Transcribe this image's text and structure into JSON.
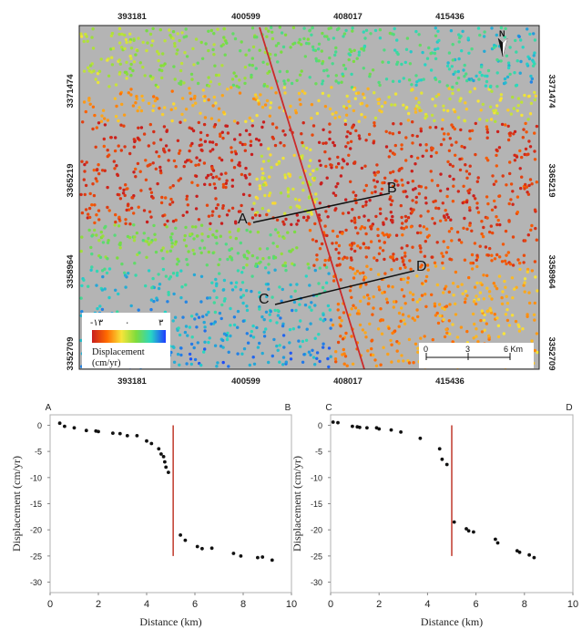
{
  "map": {
    "x_ticks": [
      "393181",
      "400599",
      "408017",
      "415436"
    ],
    "y_ticks": [
      "3371474",
      "3365219",
      "3358964",
      "3352709"
    ],
    "north_label": "N",
    "profile_labels": [
      "A",
      "B",
      "C",
      "D"
    ],
    "legend": {
      "range_labels": [
        "-۱۳",
        "۰",
        "۳"
      ],
      "title_line1": "Displacement",
      "title_line2": "(cm/yr)",
      "colors": [
        "#c81e1e",
        "#ff6a00",
        "#f7e53a",
        "#7ddc3c",
        "#28d6c4",
        "#1e3cff"
      ]
    },
    "scale_bar": {
      "labels": [
        "0",
        "3",
        "6 Km"
      ]
    },
    "colors": {
      "background": "#b4b4b4",
      "fault": "#cc2a2a",
      "profile_line": "#111111"
    }
  },
  "chart_data": [
    {
      "type": "scatter",
      "title": "",
      "corner_left": "A",
      "corner_right": "B",
      "xlabel": "Distance (km)",
      "ylabel": "Displacement (cm/yr)",
      "xlim": [
        0,
        10
      ],
      "ylim": [
        -32,
        2
      ],
      "x_ticks": [
        0,
        2,
        4,
        6,
        8,
        10
      ],
      "y_ticks": [
        0,
        -5,
        -10,
        -15,
        -20,
        -25,
        -30
      ],
      "fault_line": {
        "x": 5.1,
        "y_from": 0,
        "y_to": -25
      },
      "points": [
        [
          0.4,
          0.4
        ],
        [
          0.6,
          -0.2
        ],
        [
          1.0,
          -0.5
        ],
        [
          1.5,
          -1.0
        ],
        [
          1.9,
          -1.1
        ],
        [
          2.0,
          -1.2
        ],
        [
          2.6,
          -1.5
        ],
        [
          2.9,
          -1.6
        ],
        [
          3.2,
          -2.0
        ],
        [
          3.6,
          -2.0
        ],
        [
          4.0,
          -3.0
        ],
        [
          4.2,
          -3.5
        ],
        [
          4.5,
          -4.5
        ],
        [
          4.6,
          -5.5
        ],
        [
          4.7,
          -6.0
        ],
        [
          4.75,
          -7.0
        ],
        [
          4.8,
          -8.0
        ],
        [
          4.9,
          -9.0
        ],
        [
          5.4,
          -21.0
        ],
        [
          5.6,
          -22.0
        ],
        [
          6.1,
          -23.2
        ],
        [
          6.3,
          -23.6
        ],
        [
          6.7,
          -23.5
        ],
        [
          7.6,
          -24.5
        ],
        [
          7.9,
          -25.0
        ],
        [
          8.6,
          -25.3
        ],
        [
          8.8,
          -25.2
        ],
        [
          9.2,
          -25.8
        ]
      ]
    },
    {
      "type": "scatter",
      "title": "",
      "corner_left": "C",
      "corner_right": "D",
      "xlabel": "Distance (km)",
      "ylabel": "Displacement (cm/yr)",
      "xlim": [
        0,
        10
      ],
      "ylim": [
        -32,
        2
      ],
      "x_ticks": [
        0,
        2,
        4,
        6,
        8,
        10
      ],
      "y_ticks": [
        0,
        -5,
        -10,
        -15,
        -20,
        -25,
        -30
      ],
      "fault_line": {
        "x": 5.0,
        "y_from": 0,
        "y_to": -25
      },
      "points": [
        [
          0.1,
          0.6
        ],
        [
          0.3,
          0.5
        ],
        [
          0.9,
          -0.2
        ],
        [
          1.1,
          -0.3
        ],
        [
          1.2,
          -0.4
        ],
        [
          1.5,
          -0.5
        ],
        [
          1.9,
          -0.5
        ],
        [
          2.0,
          -0.7
        ],
        [
          2.5,
          -0.9
        ],
        [
          2.9,
          -1.3
        ],
        [
          3.7,
          -2.5
        ],
        [
          4.5,
          -4.5
        ],
        [
          4.6,
          -6.5
        ],
        [
          4.8,
          -7.5
        ],
        [
          5.1,
          -18.5
        ],
        [
          5.6,
          -19.8
        ],
        [
          5.7,
          -20.2
        ],
        [
          5.9,
          -20.4
        ],
        [
          6.8,
          -21.8
        ],
        [
          6.9,
          -22.5
        ],
        [
          7.7,
          -24.0
        ],
        [
          7.8,
          -24.3
        ],
        [
          8.2,
          -24.8
        ],
        [
          8.4,
          -25.3
        ]
      ]
    }
  ]
}
